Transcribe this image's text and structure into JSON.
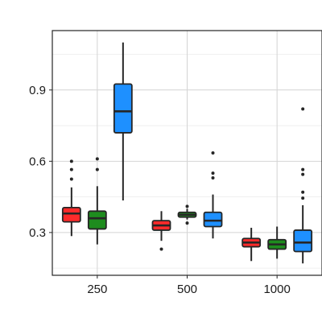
{
  "chart_data": {
    "type": "boxplot",
    "categories": [
      "250",
      "500",
      "1000"
    ],
    "ylim": [
      0.12,
      1.15
    ],
    "yticks": [
      0.3,
      0.6,
      0.9
    ],
    "ytick_labels": [
      "0.3",
      "0.6",
      "0.9"
    ],
    "grid": true,
    "legend": "none",
    "series": [
      {
        "color": "#ff2b2b",
        "boxes": [
          {
            "min": 0.285,
            "q1": 0.345,
            "median": 0.38,
            "q3": 0.405,
            "max": 0.49,
            "outliers": [
              0.525,
              0.565,
              0.6
            ]
          },
          {
            "min": 0.265,
            "q1": 0.31,
            "median": 0.33,
            "q3": 0.35,
            "max": 0.39,
            "outliers": [
              0.23
            ]
          },
          {
            "min": 0.18,
            "q1": 0.24,
            "median": 0.258,
            "q3": 0.275,
            "max": 0.32,
            "outliers": []
          }
        ]
      },
      {
        "color": "#1e8c1e",
        "boxes": [
          {
            "min": 0.25,
            "q1": 0.315,
            "median": 0.36,
            "q3": 0.39,
            "max": 0.495,
            "outliers": [
              0.565,
              0.61
            ]
          },
          {
            "min": 0.355,
            "q1": 0.365,
            "median": 0.375,
            "q3": 0.385,
            "max": 0.4,
            "outliers": [
              0.34,
              0.41
            ]
          },
          {
            "min": 0.19,
            "q1": 0.23,
            "median": 0.25,
            "q3": 0.27,
            "max": 0.325,
            "outliers": []
          }
        ]
      },
      {
        "color": "#1e90ff",
        "boxes": [
          {
            "min": 0.435,
            "q1": 0.72,
            "median": 0.81,
            "q3": 0.925,
            "max": 1.1,
            "outliers": []
          },
          {
            "min": 0.275,
            "q1": 0.325,
            "median": 0.35,
            "q3": 0.385,
            "max": 0.46,
            "outliers": [
              0.53,
              0.55,
              0.635
            ]
          },
          {
            "min": 0.17,
            "q1": 0.22,
            "median": 0.258,
            "q3": 0.31,
            "max": 0.415,
            "outliers": [
              0.445,
              0.47,
              0.545,
              0.565,
              0.82
            ]
          }
        ]
      }
    ]
  }
}
